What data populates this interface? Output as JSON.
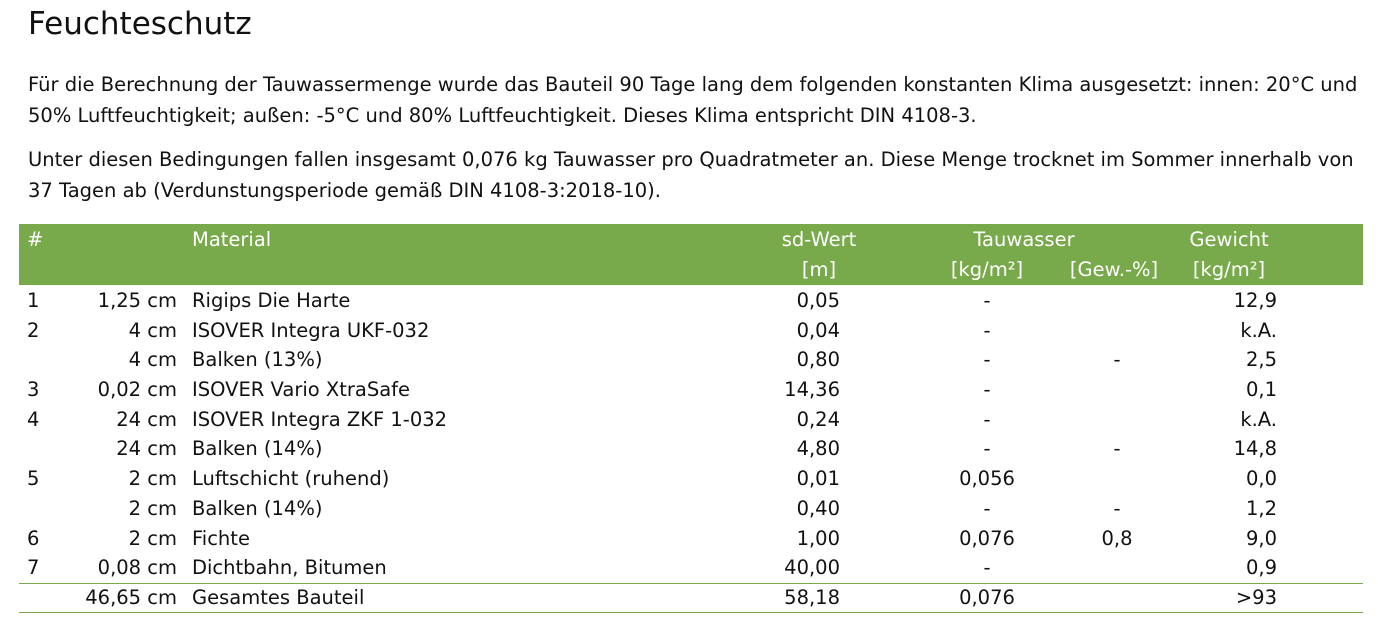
{
  "title": "Feuchteschutz",
  "paragraphs": [
    "Für die Berechnung der Tauwassermenge wurde das Bauteil 90 Tage lang dem folgenden konstanten Klima ausgesetzt: innen: 20°C und 50% Luftfeuchtigkeit; außen: -5°C und 80% Luftfeuchtigkeit. Dieses Klima entspricht DIN 4108-3.",
    "Unter diesen Bedingungen fallen insgesamt 0,076 kg Tauwasser pro Quadratmeter an. Diese Menge trocknet im Sommer innerhalb von 37 Tagen ab (Verdunstungsperiode gemäß DIN 4108-3:2018-10)."
  ],
  "table": {
    "header": {
      "num": "#",
      "material": "Material",
      "sd": "sd-Wert",
      "sd_unit": "[m]",
      "tauwasser": "Tauwasser",
      "tau_unit_kg": "[kg/m²]",
      "tau_unit_gew": "[Gew.-%]",
      "gewicht": "Gewicht",
      "gewicht_unit": "[kg/m²]"
    },
    "rows": [
      {
        "num": "1",
        "thickness": "1,25 cm",
        "material": "Rigips Die Harte",
        "sd": "0,05",
        "tau_kg": "-",
        "tau_gew": "",
        "weight": "12,9"
      },
      {
        "num": "2",
        "thickness": "4 cm",
        "material": "ISOVER Integra UKF-032",
        "sd": "0,04",
        "tau_kg": "-",
        "tau_gew": "",
        "weight": "k.A."
      },
      {
        "num": "",
        "thickness": "4 cm",
        "material": "Balken (13%)",
        "sd": "0,80",
        "tau_kg": "-",
        "tau_gew": "-",
        "weight": "2,5"
      },
      {
        "num": "3",
        "thickness": "0,02 cm",
        "material": "ISOVER Vario XtraSafe",
        "sd": "14,36",
        "tau_kg": "-",
        "tau_gew": "",
        "weight": "0,1"
      },
      {
        "num": "4",
        "thickness": "24 cm",
        "material": "ISOVER Integra ZKF 1-032",
        "sd": "0,24",
        "tau_kg": "-",
        "tau_gew": "",
        "weight": "k.A."
      },
      {
        "num": "",
        "thickness": "24 cm",
        "material": "Balken (14%)",
        "sd": "4,80",
        "tau_kg": "-",
        "tau_gew": "-",
        "weight": "14,8"
      },
      {
        "num": "5",
        "thickness": "2 cm",
        "material": "Luftschicht (ruhend)",
        "sd": "0,01",
        "tau_kg": "0,056",
        "tau_gew": "",
        "weight": "0,0"
      },
      {
        "num": "",
        "thickness": "2 cm",
        "material": "Balken (14%)",
        "sd": "0,40",
        "tau_kg": "-",
        "tau_gew": "-",
        "weight": "1,2"
      },
      {
        "num": "6",
        "thickness": "2 cm",
        "material": "Fichte",
        "sd": "1,00",
        "tau_kg": "0,076",
        "tau_gew": "0,8",
        "weight": "9,0"
      },
      {
        "num": "7",
        "thickness": "0,08 cm",
        "material": "Dichtbahn, Bitumen",
        "sd": "40,00",
        "tau_kg": "-",
        "tau_gew": "",
        "weight": "0,9"
      }
    ],
    "total": {
      "thickness": "46,65 cm",
      "material": "Gesamtes Bauteil",
      "sd": "58,18",
      "tau_kg": "0,076",
      "tau_gew": "",
      "weight": ">93"
    }
  },
  "colors": {
    "header_bg": "#78a94a",
    "header_text": "#ffffff",
    "rule": "#78a94a"
  }
}
